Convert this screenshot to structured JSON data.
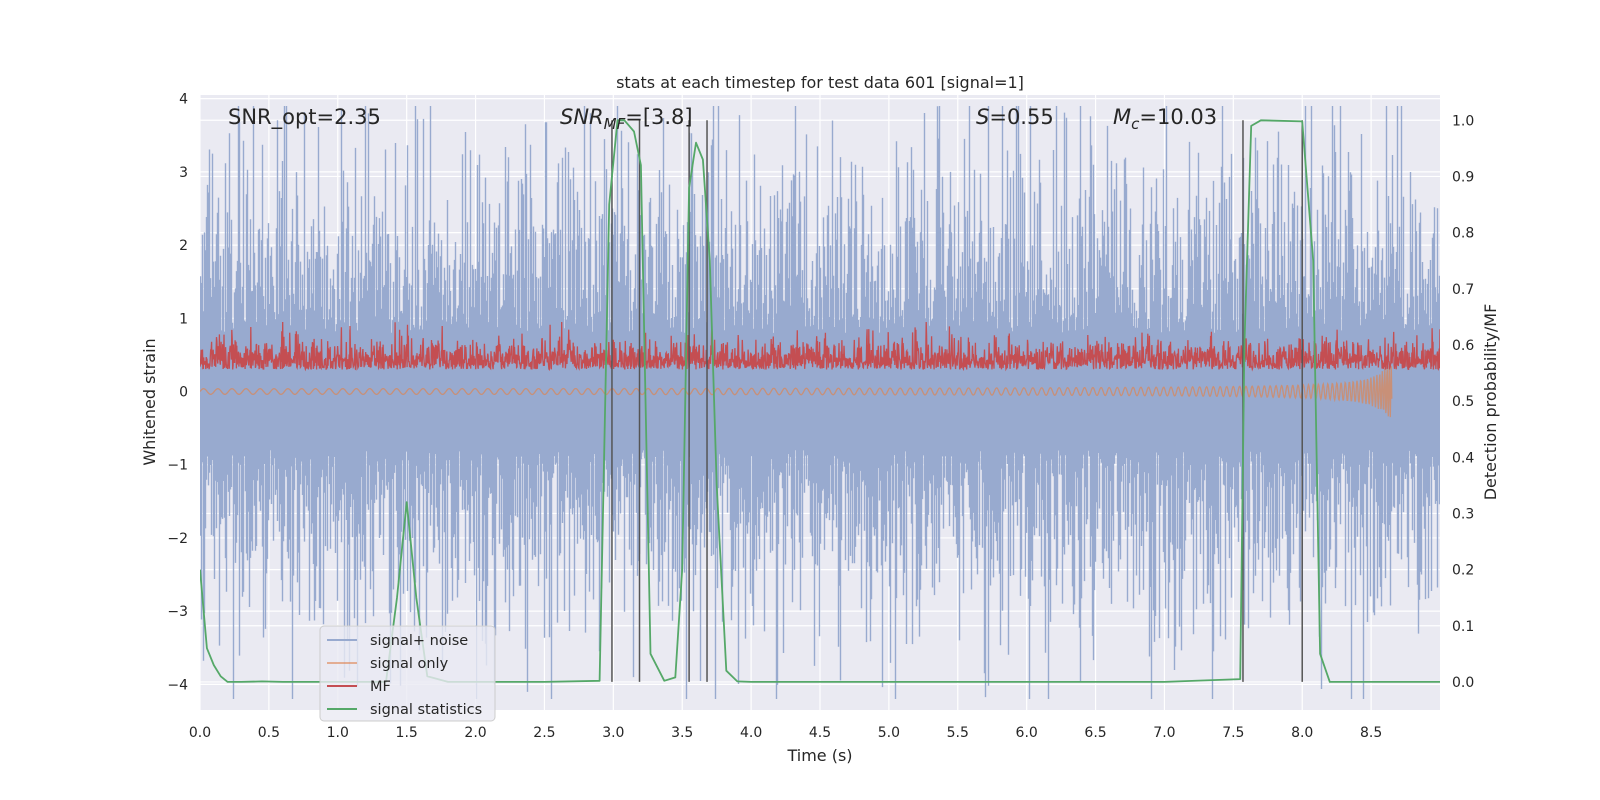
{
  "chart_data": {
    "type": "line",
    "title": "stats at each timestep for test data 601 [signal=1]",
    "xlabel": "Time (s)",
    "ylabel_left": "Whitened strain",
    "ylabel_right": "Detection probability/MF",
    "xlim": [
      0,
      9.0
    ],
    "ylim_left": [
      -4.35,
      4.05
    ],
    "ylim_right": [
      -0.05,
      1.045
    ],
    "x_ticks": [
      "0.0",
      "0.5",
      "1.0",
      "1.5",
      "2.0",
      "2.5",
      "3.0",
      "3.5",
      "4.0",
      "4.5",
      "5.0",
      "5.5",
      "6.0",
      "6.5",
      "7.0",
      "7.5",
      "8.0",
      "8.5"
    ],
    "y_ticks_left": [
      "4",
      "3",
      "2",
      "1",
      "0",
      "−1",
      "−2",
      "−3",
      "−4"
    ],
    "y_ticks_right": [
      "1.0",
      "0.9",
      "0.8",
      "0.7",
      "0.6",
      "0.5",
      "0.4",
      "0.3",
      "0.2",
      "0.1",
      "0.0"
    ],
    "grid": true,
    "legend_position": "lower-left",
    "colors": {
      "plot_bg": "#eaeaf2",
      "noise": "#98aacf",
      "signal_only": "#dd8452",
      "mf": "#c44e52",
      "signal_statistics": "#55a868",
      "vlines": "#555555"
    },
    "annotations": {
      "snr_opt": "SNR_opt=2.35",
      "snr_mf_main": "SNR",
      "snr_mf_sub": "MF",
      "snr_mf_value": "=[3.8]",
      "s_var": "S",
      "s_value": "=0.55",
      "mc_main": "M",
      "mc_sub": "c",
      "mc_value": "=10.03"
    },
    "series": [
      {
        "name": "signal+ noise"
      },
      {
        "name": "signal only"
      },
      {
        "name": "MF"
      },
      {
        "name": "signal statistics",
        "x": [
          0.0,
          0.05,
          0.1,
          0.15,
          0.2,
          0.3,
          0.45,
          0.6,
          0.8,
          1.0,
          1.2,
          1.35,
          1.43,
          1.5,
          1.57,
          1.65,
          1.8,
          2.0,
          2.5,
          2.9,
          2.97,
          3.03,
          3.08,
          3.15,
          3.2,
          3.27,
          3.37,
          3.45,
          3.5,
          3.55,
          3.6,
          3.65,
          3.7,
          3.75,
          3.82,
          3.9,
          4.0,
          5.0,
          6.0,
          7.0,
          7.55,
          7.58,
          7.63,
          7.7,
          8.0,
          8.08,
          8.13,
          8.2,
          8.3,
          9.0
        ],
        "values": [
          0.2,
          0.06,
          0.03,
          0.01,
          0.0,
          0.0,
          0.001,
          0.0,
          0.0,
          0.0,
          0.0,
          0.0,
          0.15,
          0.32,
          0.15,
          0.01,
          0.0,
          0.0,
          0.0,
          0.002,
          0.85,
          1.0,
          1.0,
          0.98,
          0.92,
          0.05,
          0.002,
          0.008,
          0.2,
          0.88,
          0.96,
          0.93,
          0.75,
          0.35,
          0.02,
          0.001,
          0.0,
          0.0,
          0.0,
          0.0,
          0.005,
          0.6,
          0.99,
          1.0,
          0.998,
          0.75,
          0.05,
          0.0,
          0.0,
          0.0
        ]
      }
    ],
    "vlines": [
      2.99,
      3.19,
      3.55,
      3.68,
      7.57,
      8.0
    ]
  }
}
